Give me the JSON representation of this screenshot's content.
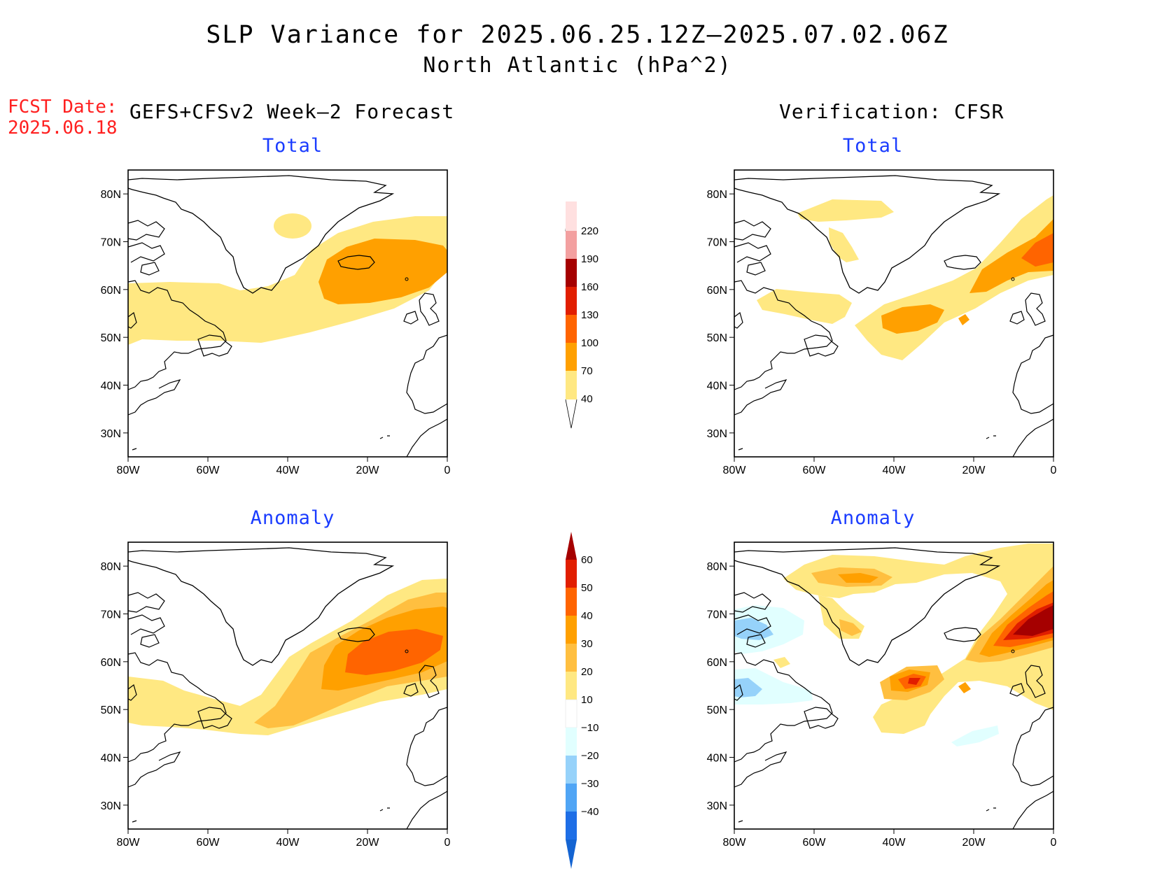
{
  "title": {
    "line1": "SLP Variance for 2025.06.25.12Z–2025.07.02.06Z",
    "line2": "North Atlantic (hPa^2)"
  },
  "forecast_date": {
    "label": "FCST Date:",
    "value": "2025.06.18"
  },
  "columns": {
    "left": "GEFS+CFSv2 Week–2 Forecast",
    "right": "Verification: CFSR"
  },
  "panels": {
    "forecast_total": "Total",
    "verification_total": "Total",
    "forecast_anomaly": "Anomaly",
    "verification_anomaly": "Anomaly"
  },
  "axes": {
    "lat_labels": [
      "80N",
      "70N",
      "60N",
      "50N",
      "40N",
      "30N"
    ],
    "lat_values": [
      80,
      70,
      60,
      50,
      40,
      30
    ],
    "lon_labels": [
      "80W",
      "60W",
      "40W",
      "20W",
      "0"
    ],
    "lon_values": [
      -80,
      -60,
      -40,
      -20,
      0
    ],
    "lon_range": [
      -80,
      0
    ],
    "lat_range": [
      25,
      85
    ]
  },
  "colorbar_total": {
    "labels": [
      "40",
      "70",
      "100",
      "130",
      "160",
      "190",
      "220"
    ],
    "colors": [
      "#ffe882",
      "#ffa000",
      "#ff6400",
      "#e11e00",
      "#a50000",
      "#f3a0a0",
      "#ffe0e0"
    ]
  },
  "colorbar_anomaly": {
    "labels": [
      "60",
      "50",
      "40",
      "30",
      "20",
      "10",
      "−10",
      "−20",
      "−30",
      "−40"
    ],
    "colors": [
      "#a50000",
      "#e11e00",
      "#ff6400",
      "#ffa000",
      "#ffbf40",
      "#ffe882",
      "#ffffff",
      "#e1ffff",
      "#96d2fa",
      "#50a5f5",
      "#1e6ee6",
      "#1464d2"
    ]
  }
}
